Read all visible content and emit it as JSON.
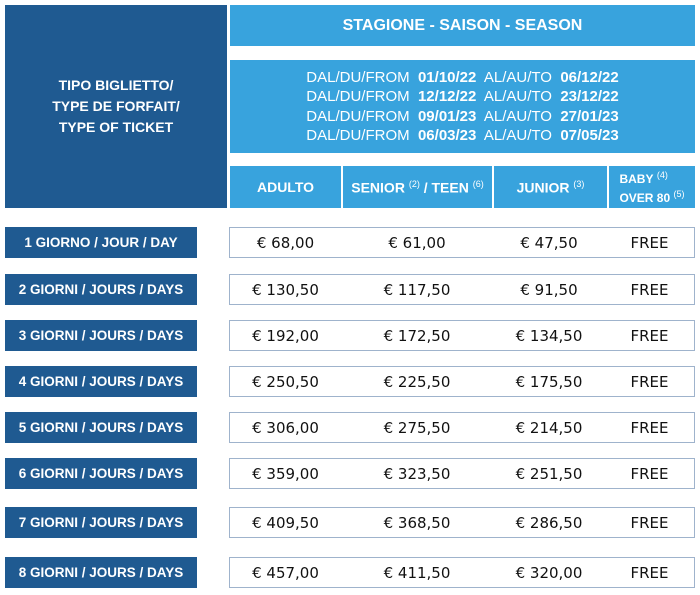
{
  "header": {
    "ticket_type": [
      "TIPO BIGLIETTO/",
      "TYPE DE FORFAIT/",
      "TYPE OF TICKET"
    ],
    "season": "STAGIONE - SAISON - SEASON",
    "from_label": "DAL/DU/FROM",
    "to_label": "AL/AU/TO",
    "periods": [
      {
        "from": "01/10/22",
        "to": "06/12/22"
      },
      {
        "from": "12/12/22",
        "to": "23/12/22"
      },
      {
        "from": "09/01/23",
        "to": "27/01/23"
      },
      {
        "from": "06/03/23",
        "to": "07/05/23"
      }
    ],
    "columns": {
      "adulto": "ADULTO",
      "senior": "SENIOR",
      "senior_note": "(2)",
      "teen": " / TEEN",
      "teen_note": "(6)",
      "junior": "JUNIOR",
      "junior_note": "(3)",
      "baby": "BABY",
      "baby_note": "(4)",
      "over80": "OVER 80",
      "over80_note": "(5)"
    }
  },
  "rows": [
    {
      "label": "1 GIORNO / JOUR / DAY",
      "prices": [
        "€ 68,00",
        "€ 61,00",
        "€ 47,50",
        "FREE"
      ]
    },
    {
      "label": "2 GIORNI / JOURS / DAYS",
      "prices": [
        "€ 130,50",
        "€ 117,50",
        "€ 91,50",
        "FREE"
      ]
    },
    {
      "label": "3 GIORNI / JOURS / DAYS",
      "prices": [
        "€ 192,00",
        "€ 172,50",
        "€ 134,50",
        "FREE"
      ]
    },
    {
      "label": "4 GIORNI / JOURS / DAYS",
      "prices": [
        "€ 250,50",
        "€ 225,50",
        "€ 175,50",
        "FREE"
      ]
    },
    {
      "label": "5 GIORNI / JOURS / DAYS",
      "prices": [
        "€ 306,00",
        "€ 275,50",
        "€ 214,50",
        "FREE"
      ]
    },
    {
      "label": "6 GIORNI / JOURS / DAYS",
      "prices": [
        "€ 359,00",
        "€ 323,50",
        "€ 251,50",
        "FREE"
      ]
    },
    {
      "label": "7 GIORNI / JOURS / DAYS",
      "prices": [
        "€ 409,50",
        "€ 368,50",
        "€ 286,50",
        "FREE"
      ]
    },
    {
      "label": "8 GIORNI / JOURS / DAYS",
      "prices": [
        "€ 457,00",
        "€ 411,50",
        "€ 320,00",
        "FREE"
      ]
    }
  ],
  "colors": {
    "dark_blue": "#1f5a91",
    "light_blue": "#38a3dd"
  }
}
